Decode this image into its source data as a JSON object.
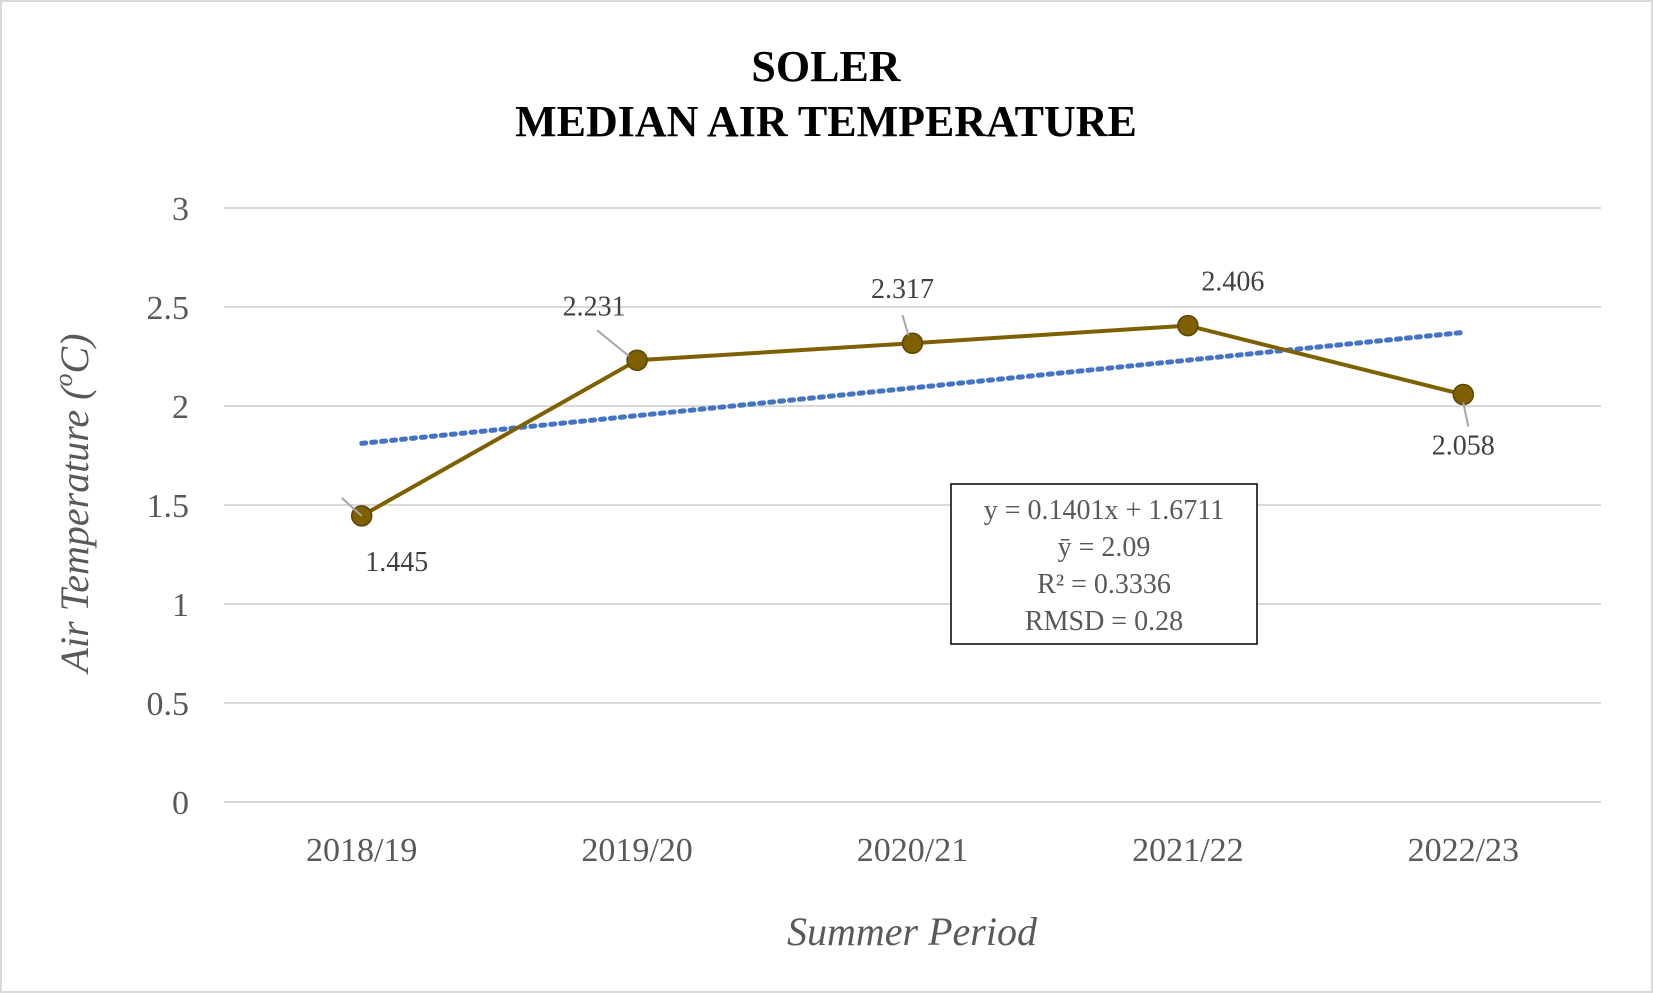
{
  "chart_data": {
    "type": "line",
    "title_lines": [
      "SOLER",
      "MEDIAN AIR TEMPERATURE"
    ],
    "xlabel": "Summer Period",
    "ylabel": "Air Temperature (",
    "ylabel_unit_sup": "o",
    "ylabel_unit_tail": "C)",
    "categories": [
      "2018/19",
      "2019/20",
      "2020/21",
      "2021/22",
      "2022/23"
    ],
    "ylim": [
      0,
      3
    ],
    "yticks": [
      0,
      0.5,
      1,
      1.5,
      2,
      2.5,
      3
    ],
    "ytick_labels": [
      "0",
      "0.5",
      "1",
      "1.5",
      "2",
      "2.5",
      "3"
    ],
    "grid": true,
    "series": [
      {
        "values": [
          1.445,
          2.231,
          2.317,
          2.406,
          2.058
        ],
        "data_labels": [
          "1.445",
          "2.231",
          "2.317",
          "2.406",
          "2.058"
        ],
        "color": "#7f6000",
        "marker": "circle"
      }
    ],
    "trendline": {
      "type": "linear",
      "slope": 0.1401,
      "intercept": 1.6711,
      "color": "#4472c4",
      "style": "dotted"
    },
    "annotation_box": {
      "lines": [
        "y = 0.1401x + 1.6711",
        "ȳ = 2.09",
        "R² = 0.3336",
        "RMSD = 0.28"
      ]
    }
  }
}
